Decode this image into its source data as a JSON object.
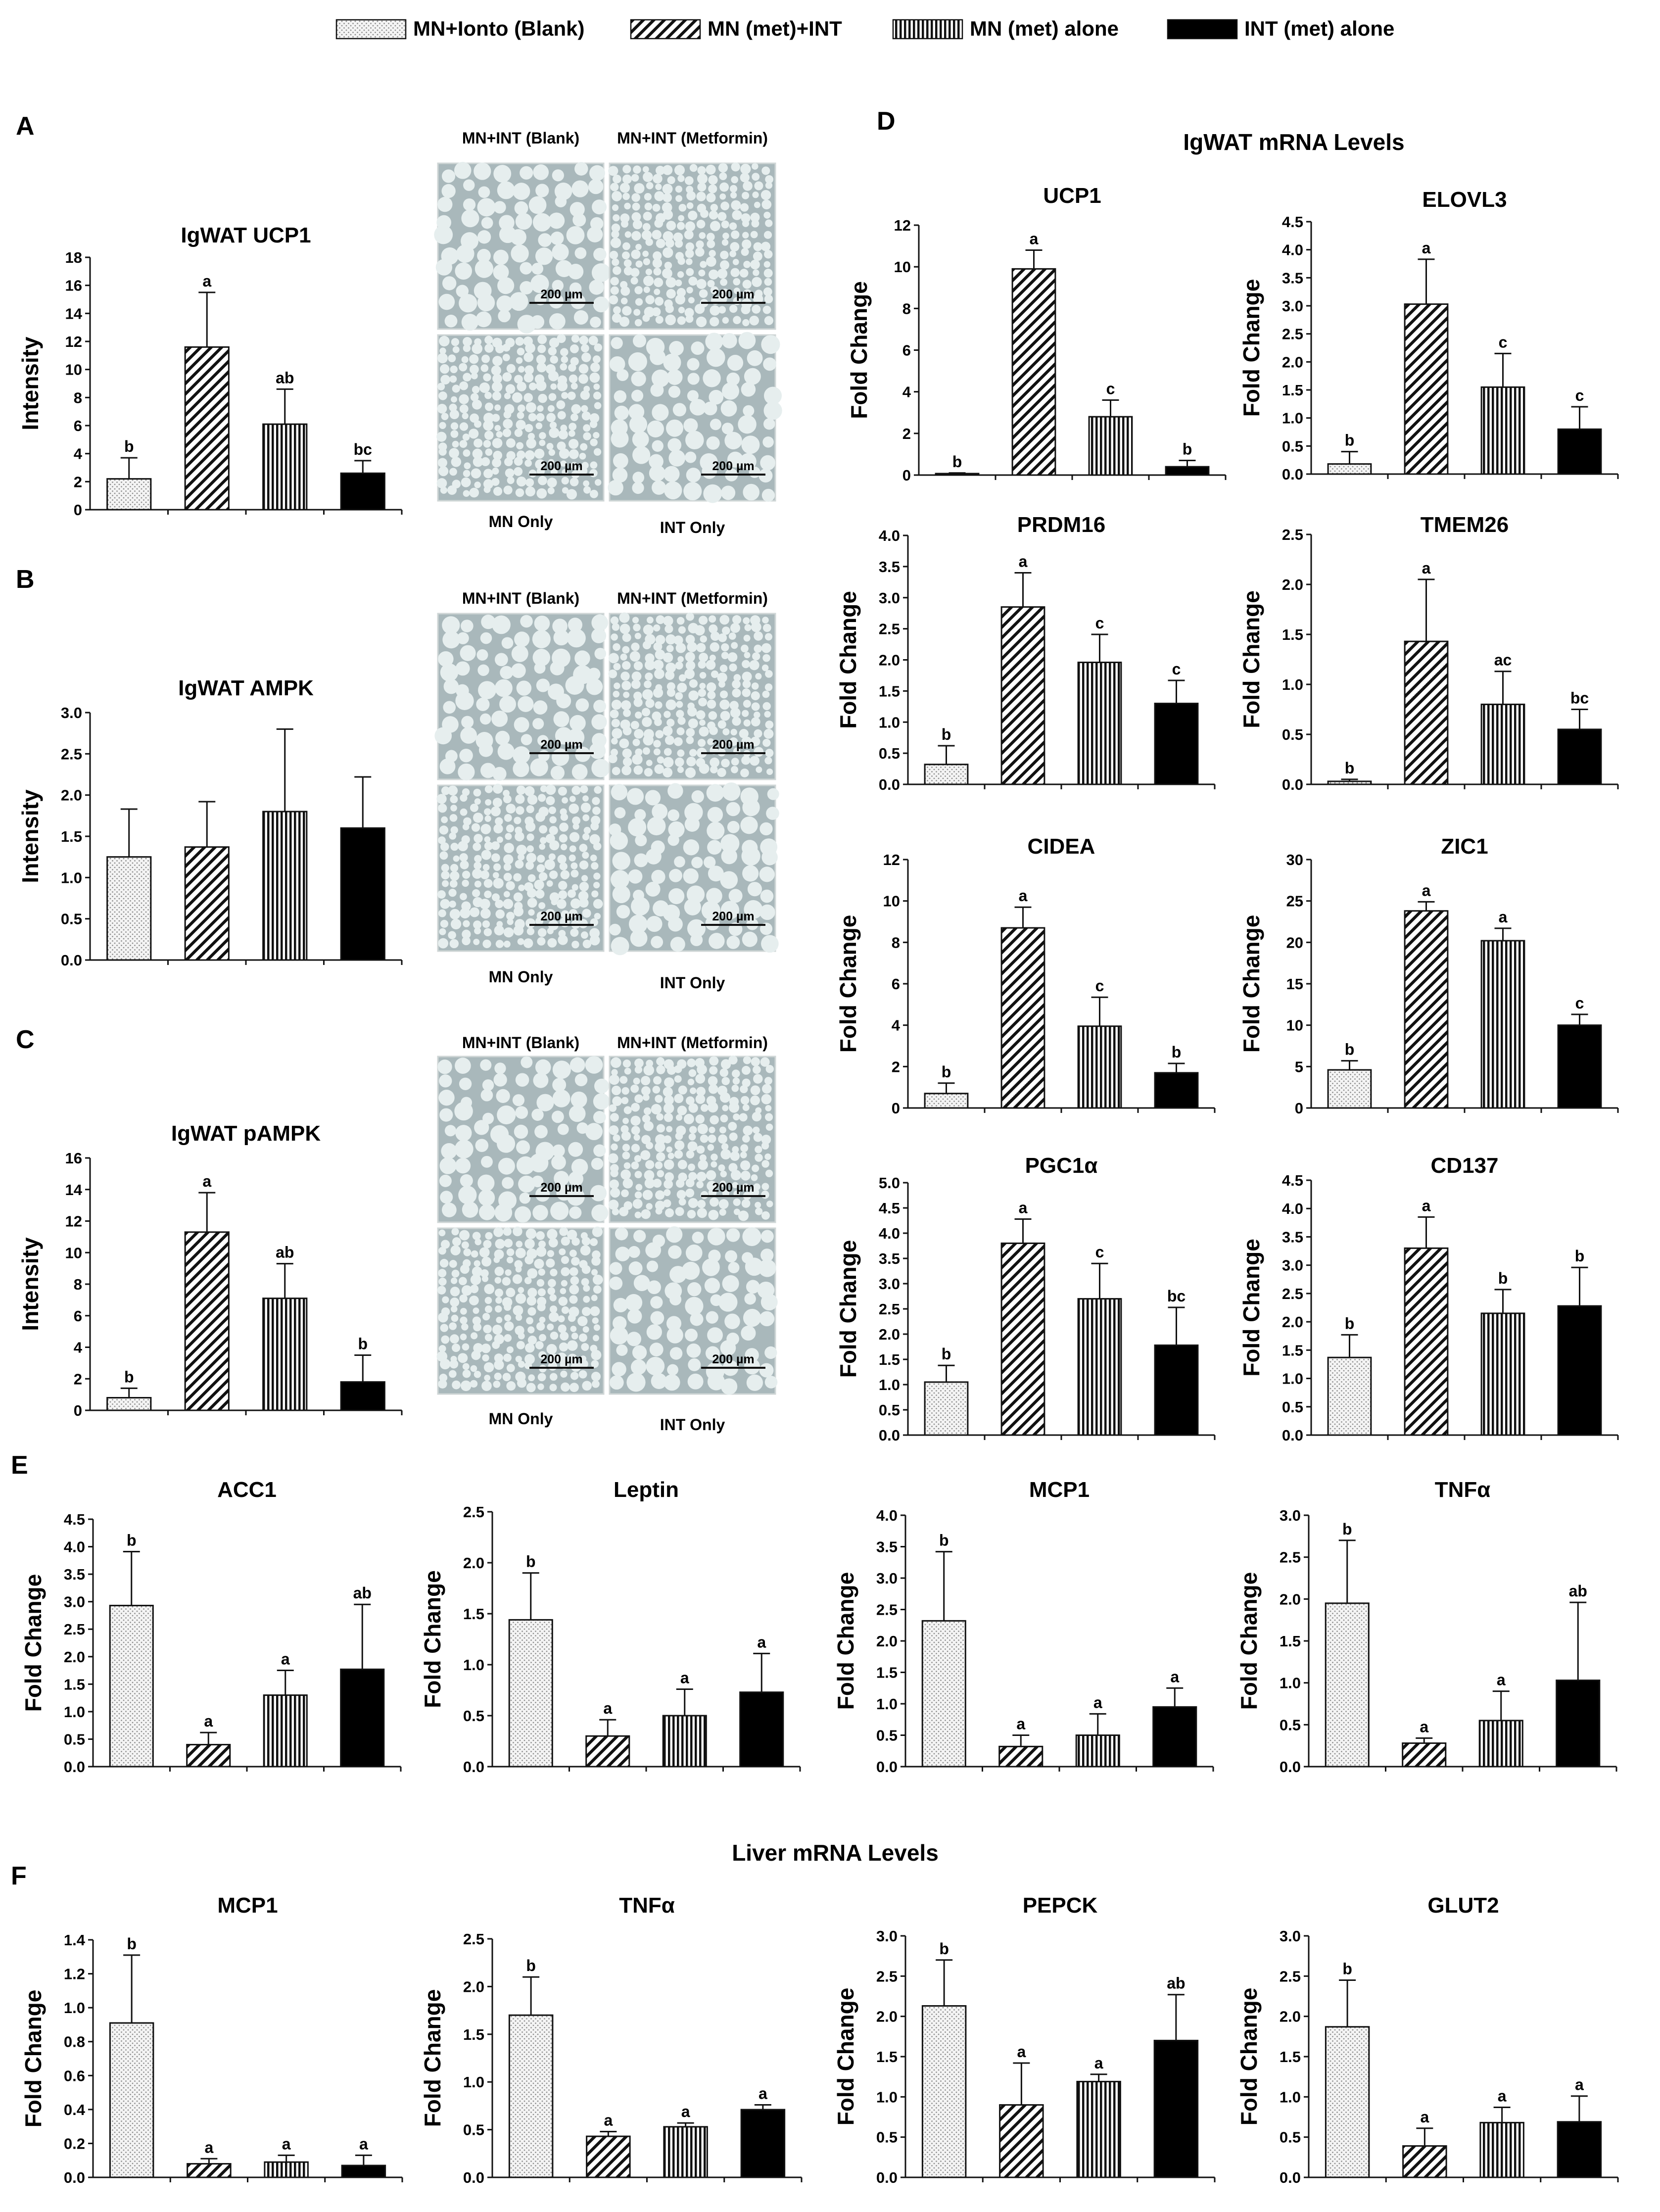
{
  "legend": [
    {
      "label": "MN+Ionto (Blank)",
      "pattern": "dots"
    },
    {
      "label": "MN (met)+INT",
      "pattern": "diag"
    },
    {
      "label": "MN (met) alone",
      "pattern": "vert"
    },
    {
      "label": "INT (met) alone",
      "pattern": "solid"
    }
  ],
  "colors": {
    "ink": "#111111",
    "dots": "#9a9a9a",
    "tissue": "#a9b6b9",
    "cell": "#e3ebeb"
  },
  "panels": {
    "A": "A",
    "B": "B",
    "C": "C",
    "D": "D",
    "E": "E",
    "F": "F"
  },
  "section_titles": {
    "d_title": "IgWAT mRNA Levels",
    "f_title": "Liver mRNA Levels"
  },
  "micrographs": {
    "A": {
      "tl": "MN+INT (Blank)",
      "tr": "MN+INT (Metformin)",
      "bl": "MN Only",
      "br": "INT Only",
      "scale": "200 µm"
    },
    "B": {
      "tl": "MN+INT (Blank)",
      "tr": "MN+INT (Metformin)",
      "bl": "MN Only",
      "br": "INT Only",
      "scale": "200 µm"
    },
    "C": {
      "tl": "MN+INT (Blank)",
      "tr": "MN+INT (Metformin)",
      "bl": "MN Only",
      "br": "INT Only",
      "scale": "200 µm"
    }
  },
  "chart_data": [
    {
      "id": "A1",
      "type": "bar",
      "title": "IgWAT UCP1",
      "ylabel": "Intensity",
      "xlabel": "",
      "ylim": [
        0,
        18
      ],
      "yticks": [
        "0",
        "2",
        "4",
        "6",
        "8",
        "10",
        "12",
        "14",
        "16",
        "18"
      ],
      "values": [
        2.2,
        11.6,
        6.1,
        2.6
      ],
      "errors": [
        1.5,
        3.9,
        2.5,
        0.9
      ],
      "letters": [
        "b",
        "a",
        "ab",
        "bc"
      ]
    },
    {
      "id": "B1",
      "type": "bar",
      "title": "IgWAT AMPK",
      "ylabel": "Intensity",
      "xlabel": "",
      "ylim": [
        0,
        3
      ],
      "yticks": [
        "0.0",
        "0.5",
        "1.0",
        "1.5",
        "2.0",
        "2.5",
        "3.0"
      ],
      "values": [
        1.25,
        1.37,
        1.8,
        1.6
      ],
      "errors": [
        0.58,
        0.55,
        1.0,
        0.62
      ],
      "letters": [
        "",
        "",
        "",
        ""
      ]
    },
    {
      "id": "C1",
      "type": "bar",
      "title": "IgWAT pAMPK",
      "ylabel": "Intensity",
      "xlabel": "",
      "ylim": [
        0,
        16
      ],
      "yticks": [
        "0",
        "2",
        "4",
        "6",
        "8",
        "10",
        "12",
        "14",
        "16"
      ],
      "values": [
        0.8,
        11.3,
        7.1,
        1.8
      ],
      "errors": [
        0.6,
        2.5,
        2.2,
        1.7
      ],
      "letters": [
        "b",
        "a",
        "ab",
        "b"
      ]
    },
    {
      "id": "D1",
      "type": "bar",
      "title": "UCP1",
      "ylabel": "Fold Change",
      "xlabel": "",
      "ylim": [
        0,
        12
      ],
      "yticks": [
        "0",
        "2",
        "4",
        "6",
        "8",
        "10",
        "12"
      ],
      "values": [
        0.05,
        9.9,
        2.8,
        0.4
      ],
      "errors": [
        0.05,
        0.9,
        0.8,
        0.3
      ],
      "letters": [
        "b",
        "a",
        "c",
        "b"
      ]
    },
    {
      "id": "D2",
      "type": "bar",
      "title": "ELOVL3",
      "ylabel": "Fold Change",
      "xlabel": "",
      "ylim": [
        0,
        4.5
      ],
      "yticks": [
        "0.0",
        "0.5",
        "1.0",
        "1.5",
        "2.0",
        "2.5",
        "3.0",
        "3.5",
        "4.0",
        "4.5"
      ],
      "values": [
        0.18,
        3.03,
        1.55,
        0.8
      ],
      "errors": [
        0.22,
        0.8,
        0.6,
        0.4
      ],
      "letters": [
        "b",
        "a",
        "c",
        "c"
      ]
    },
    {
      "id": "D3",
      "type": "bar",
      "title": "PRDM16",
      "ylabel": "Fold Change",
      "xlabel": "",
      "ylim": [
        0,
        4
      ],
      "yticks": [
        "0.0",
        "0.5",
        "1.0",
        "1.5",
        "2.0",
        "2.5",
        "3.0",
        "3.5",
        "4.0"
      ],
      "values": [
        0.32,
        2.85,
        1.96,
        1.3
      ],
      "errors": [
        0.3,
        0.55,
        0.45,
        0.37
      ],
      "letters": [
        "b",
        "a",
        "c",
        "c"
      ]
    },
    {
      "id": "D4",
      "type": "bar",
      "title": "TMEM26",
      "ylabel": "Fold Change",
      "xlabel": "",
      "ylim": [
        0,
        2.5
      ],
      "yticks": [
        "0.0",
        "0.5",
        "1.0",
        "1.5",
        "2.0",
        "2.5"
      ],
      "values": [
        0.03,
        1.43,
        0.8,
        0.55
      ],
      "errors": [
        0.02,
        0.62,
        0.33,
        0.2
      ],
      "letters": [
        "b",
        "a",
        "ac",
        "bc"
      ]
    },
    {
      "id": "D5",
      "type": "bar",
      "title": "CIDEA",
      "ylabel": "Fold Change",
      "xlabel": "",
      "ylim": [
        0,
        12
      ],
      "yticks": [
        "0",
        "2",
        "4",
        "6",
        "8",
        "10",
        "12"
      ],
      "values": [
        0.7,
        8.7,
        3.95,
        1.7
      ],
      "errors": [
        0.5,
        1.0,
        1.4,
        0.45
      ],
      "letters": [
        "b",
        "a",
        "c",
        "b"
      ]
    },
    {
      "id": "D6",
      "type": "bar",
      "title": "ZIC1",
      "ylabel": "Fold Change",
      "xlabel": "",
      "ylim": [
        0,
        30
      ],
      "yticks": [
        "0",
        "5",
        "10",
        "15",
        "20",
        "25",
        "30"
      ],
      "values": [
        4.6,
        23.8,
        20.2,
        10.0
      ],
      "errors": [
        1.1,
        1.1,
        1.5,
        1.3
      ],
      "letters": [
        "b",
        "a",
        "a",
        "c"
      ]
    },
    {
      "id": "D7",
      "type": "bar",
      "title": "PGC1α",
      "ylabel": "Fold Change",
      "xlabel": "",
      "ylim": [
        0,
        5
      ],
      "yticks": [
        "0.0",
        "0.5",
        "1.0",
        "1.5",
        "2.0",
        "2.5",
        "3.0",
        "3.5",
        "4.0",
        "4.5",
        "5.0"
      ],
      "values": [
        1.05,
        3.8,
        2.7,
        1.78
      ],
      "errors": [
        0.33,
        0.48,
        0.7,
        0.75
      ],
      "letters": [
        "b",
        "a",
        "c",
        "bc"
      ]
    },
    {
      "id": "D8",
      "type": "bar",
      "title": "CD137",
      "ylabel": "Fold Change",
      "xlabel": "",
      "ylim": [
        0,
        4.5
      ],
      "yticks": [
        "0.0",
        "0.5",
        "1.0",
        "1.5",
        "2.0",
        "2.5",
        "3.0",
        "3.5",
        "4.0",
        "4.5"
      ],
      "values": [
        1.37,
        3.3,
        2.15,
        2.28
      ],
      "errors": [
        0.4,
        0.55,
        0.42,
        0.68
      ],
      "letters": [
        "b",
        "a",
        "b",
        "b"
      ]
    },
    {
      "id": "E1",
      "type": "bar",
      "title": "ACC1",
      "ylabel": "Fold Change",
      "xlabel": "",
      "ylim": [
        0,
        4.5
      ],
      "yticks": [
        "0.0",
        "0.5",
        "1.0",
        "1.5",
        "2.0",
        "2.5",
        "3.0",
        "3.5",
        "4.0",
        "4.5"
      ],
      "values": [
        2.93,
        0.4,
        1.3,
        1.77
      ],
      "errors": [
        0.98,
        0.22,
        0.45,
        1.18
      ],
      "letters": [
        "b",
        "a",
        "a",
        "ab"
      ]
    },
    {
      "id": "E2",
      "type": "bar",
      "title": "Leptin",
      "ylabel": "Fold Change",
      "xlabel": "",
      "ylim": [
        0,
        2.5
      ],
      "yticks": [
        "0.0",
        "0.5",
        "1.0",
        "1.5",
        "2.0",
        "2.5"
      ],
      "values": [
        1.44,
        0.3,
        0.5,
        0.73
      ],
      "errors": [
        0.46,
        0.16,
        0.26,
        0.38
      ],
      "letters": [
        "b",
        "a",
        "a",
        "a"
      ]
    },
    {
      "id": "E3",
      "type": "bar",
      "title": "MCP1",
      "ylabel": "Fold Change",
      "xlabel": "",
      "ylim": [
        0,
        4
      ],
      "yticks": [
        "0.0",
        "0.5",
        "1.0",
        "1.5",
        "2.0",
        "2.5",
        "3.0",
        "3.5",
        "4.0"
      ],
      "values": [
        2.32,
        0.32,
        0.5,
        0.95
      ],
      "errors": [
        1.1,
        0.18,
        0.34,
        0.3
      ],
      "letters": [
        "b",
        "a",
        "a",
        "a"
      ]
    },
    {
      "id": "E4",
      "type": "bar",
      "title": "TNFα",
      "ylabel": "Fold Change",
      "xlabel": "",
      "ylim": [
        0,
        3
      ],
      "yticks": [
        "0.0",
        "0.5",
        "1.0",
        "1.5",
        "2.0",
        "2.5",
        "3.0"
      ],
      "values": [
        1.95,
        0.28,
        0.55,
        1.03
      ],
      "errors": [
        0.75,
        0.06,
        0.35,
        0.93
      ],
      "letters": [
        "b",
        "a",
        "a",
        "ab"
      ]
    },
    {
      "id": "F1",
      "type": "bar",
      "title": "MCP1",
      "ylabel": "Fold Change",
      "xlabel": "",
      "ylim": [
        0,
        1.4
      ],
      "yticks": [
        "0.0",
        "0.2",
        "0.4",
        "0.6",
        "0.8",
        "1.0",
        "1.2",
        "1.4"
      ],
      "values": [
        0.91,
        0.08,
        0.09,
        0.07
      ],
      "errors": [
        0.4,
        0.03,
        0.04,
        0.06
      ],
      "letters": [
        "b",
        "a",
        "a",
        "a"
      ]
    },
    {
      "id": "F2",
      "type": "bar",
      "title": "TNFα",
      "ylabel": "Fold Change",
      "xlabel": "",
      "ylim": [
        0,
        2.5
      ],
      "yticks": [
        "0.0",
        "0.5",
        "1.0",
        "1.5",
        "2.0",
        "2.5"
      ],
      "values": [
        1.7,
        0.43,
        0.53,
        0.71
      ],
      "errors": [
        0.4,
        0.05,
        0.04,
        0.05
      ],
      "letters": [
        "b",
        "a",
        "a",
        "a"
      ]
    },
    {
      "id": "F3",
      "type": "bar",
      "title": "PEPCK",
      "ylabel": "Fold Change",
      "xlabel": "",
      "ylim": [
        0,
        3
      ],
      "yticks": [
        "0.0",
        "0.5",
        "1.0",
        "1.5",
        "2.0",
        "2.5",
        "3.0"
      ],
      "values": [
        2.13,
        0.9,
        1.19,
        1.7
      ],
      "errors": [
        0.57,
        0.52,
        0.09,
        0.57
      ],
      "letters": [
        "b",
        "a",
        "a",
        "ab"
      ]
    },
    {
      "id": "F4",
      "type": "bar",
      "title": "GLUT2",
      "ylabel": "Fold Change",
      "xlabel": "",
      "ylim": [
        0,
        3
      ],
      "yticks": [
        "0.0",
        "0.5",
        "1.0",
        "1.5",
        "2.0",
        "2.5",
        "3.0"
      ],
      "values": [
        1.87,
        0.39,
        0.68,
        0.69
      ],
      "errors": [
        0.58,
        0.22,
        0.19,
        0.32
      ],
      "letters": [
        "b",
        "a",
        "a",
        "a"
      ]
    }
  ]
}
